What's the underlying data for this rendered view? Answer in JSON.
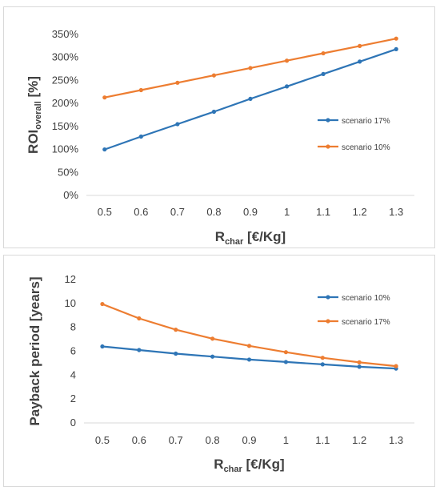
{
  "chart_data": [
    {
      "type": "line",
      "title": "",
      "xlabel": {
        "base": "R",
        "sub": "char",
        "rest": " [€/Kg]"
      },
      "ylabel": {
        "base": "ROI",
        "sub": "overall",
        "rest": " [%]"
      },
      "categories": [
        "0.5",
        "0.6",
        "0.7",
        "0.8",
        "0.9",
        "1",
        "1.1",
        "1.2",
        "1.3"
      ],
      "y_ticks": [
        "0%",
        "50%",
        "100%",
        "150%",
        "200%",
        "250%",
        "300%",
        "350%"
      ],
      "ylim": [
        0,
        350
      ],
      "grid": false,
      "legend_position": "right",
      "series": [
        {
          "name": "scenario 17%",
          "color": "#2e75b6",
          "values": [
            100,
            128,
            155,
            182,
            210,
            237,
            264,
            291,
            318
          ]
        },
        {
          "name": "scenario 10%",
          "color": "#ed7d31",
          "values": [
            213,
            229,
            245,
            261,
            277,
            293,
            309,
            325,
            341
          ]
        }
      ]
    },
    {
      "type": "line",
      "title": "",
      "xlabel": {
        "base": "R",
        "sub": "char",
        "rest": " [€/Kg]"
      },
      "ylabel": {
        "base": "Payback period [years]",
        "sub": "",
        "rest": ""
      },
      "categories": [
        "0.5",
        "0.6",
        "0.7",
        "0.8",
        "0.9",
        "1",
        "1.1",
        "1.2",
        "1.3"
      ],
      "y_ticks": [
        "0",
        "2",
        "4",
        "6",
        "8",
        "10",
        "12"
      ],
      "ylim": [
        0,
        12
      ],
      "grid": false,
      "legend_position": "right",
      "series": [
        {
          "name": "scenario 10%",
          "color": "#2e75b6",
          "values": [
            6.4,
            6.1,
            5.8,
            5.55,
            5.3,
            5.1,
            4.9,
            4.7,
            4.55
          ]
        },
        {
          "name": "scenario 17%",
          "color": "#ed7d31",
          "values": [
            9.95,
            8.75,
            7.8,
            7.05,
            6.45,
            5.92,
            5.45,
            5.07,
            4.75
          ]
        }
      ]
    }
  ]
}
